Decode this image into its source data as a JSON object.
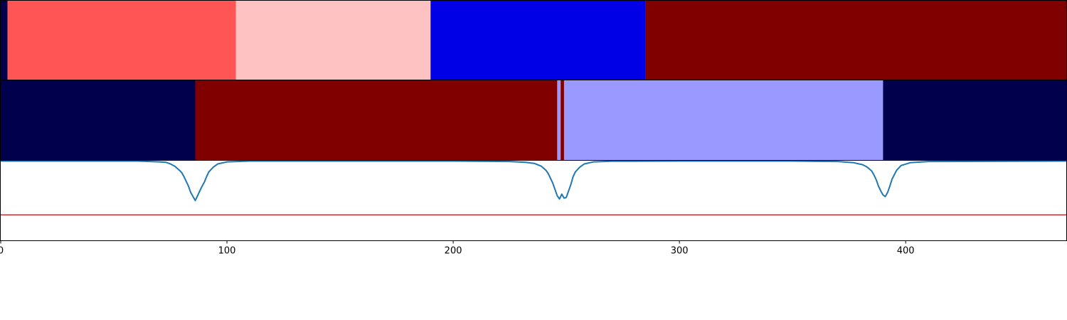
{
  "chart_data": {
    "type": "heatmap",
    "xlim": [
      0,
      471
    ],
    "x_ticks": [
      "0",
      "100",
      "200",
      "300",
      "400"
    ],
    "x_tick_values": [
      0,
      100,
      200,
      300,
      400
    ],
    "grid": false,
    "legend": "none",
    "segment_rows": [
      {
        "segments": [
          {
            "start": 0,
            "end": 3,
            "color": "#00004c"
          },
          {
            "start": 3,
            "end": 104,
            "color": "#ff5555"
          },
          {
            "start": 104,
            "end": 190,
            "color": "#ffc2c2"
          },
          {
            "start": 190,
            "end": 285,
            "color": "#0000e6"
          },
          {
            "start": 285,
            "end": 471,
            "color": "#800000"
          }
        ]
      },
      {
        "segments": [
          {
            "start": 0,
            "end": 86,
            "color": "#00004c"
          },
          {
            "start": 86,
            "end": 246,
            "color": "#800000"
          },
          {
            "start": 246,
            "end": 247.5,
            "color": "#9999ff"
          },
          {
            "start": 247.5,
            "end": 249,
            "color": "#800000"
          },
          {
            "start": 249,
            "end": 390,
            "color": "#9999ff"
          },
          {
            "start": 390,
            "end": 471,
            "color": "#00004c"
          }
        ]
      }
    ],
    "line_panel": {
      "ylim": [
        0,
        1
      ],
      "threshold": {
        "value": 0.32,
        "color": "#d62728"
      },
      "series_color": "#1f77b4",
      "series": {
        "x": [
          0,
          60,
          66,
          70,
          73,
          75,
          77,
          79,
          80,
          81,
          82,
          83,
          84,
          85,
          86,
          87,
          88,
          89,
          90,
          91,
          92,
          94,
          96,
          100,
          110,
          200,
          225,
          232,
          236,
          239,
          241,
          242,
          243,
          244,
          245,
          246,
          247,
          248,
          249,
          250,
          251,
          252,
          253,
          254,
          256,
          258,
          262,
          270,
          300,
          350,
          370,
          377,
          381,
          383,
          385,
          386,
          387,
          388,
          389,
          390,
          391,
          392,
          393,
          394,
          396,
          398,
          402,
          410,
          471
        ],
        "y": [
          0.995,
          0.995,
          0.99,
          0.985,
          0.98,
          0.96,
          0.93,
          0.88,
          0.85,
          0.8,
          0.74,
          0.68,
          0.6,
          0.55,
          0.5,
          0.56,
          0.62,
          0.68,
          0.73,
          0.8,
          0.86,
          0.92,
          0.96,
          0.985,
          0.995,
          0.995,
          0.99,
          0.98,
          0.965,
          0.93,
          0.88,
          0.84,
          0.78,
          0.72,
          0.64,
          0.56,
          0.52,
          0.58,
          0.53,
          0.54,
          0.62,
          0.7,
          0.8,
          0.86,
          0.92,
          0.96,
          0.985,
          0.993,
          0.995,
          0.995,
          0.99,
          0.975,
          0.95,
          0.92,
          0.87,
          0.82,
          0.76,
          0.68,
          0.62,
          0.57,
          0.55,
          0.6,
          0.68,
          0.77,
          0.88,
          0.94,
          0.975,
          0.99,
          0.995
        ]
      }
    }
  }
}
